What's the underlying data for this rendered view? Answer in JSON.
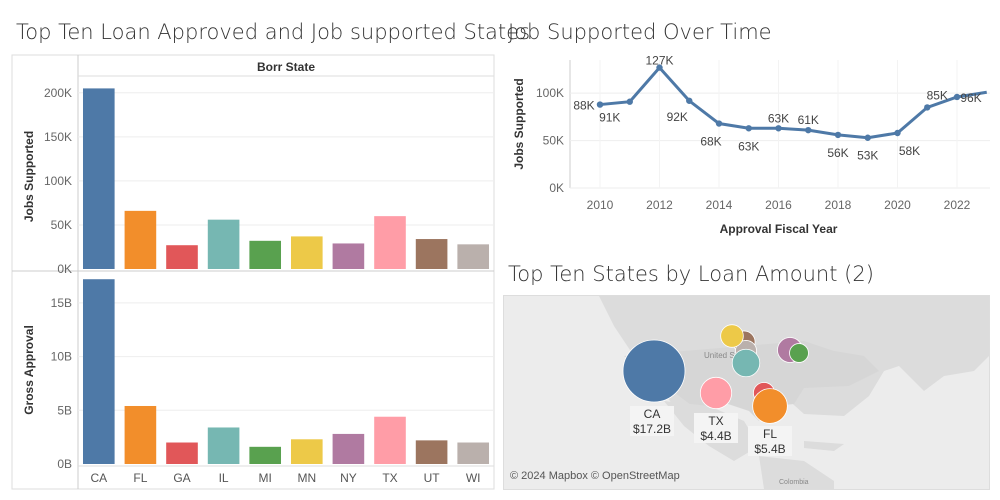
{
  "dashboard": {
    "left_title": "Top Ten Loan Approved and Job supported States",
    "right_title": "Job Supported Over Time",
    "map_title": "Top Ten States by Loan Amount (2)",
    "map_attribution": "© 2024 Mapbox © OpenStreetMap",
    "map_place_labels": [
      "United States",
      "Colombia"
    ]
  },
  "chart_data": [
    {
      "type": "bar",
      "title": "Borr State",
      "xlabel": "",
      "ylabel": "Jobs Supported",
      "categories": [
        "CA",
        "FL",
        "GA",
        "IL",
        "MI",
        "MN",
        "NY",
        "TX",
        "UT",
        "WI"
      ],
      "values": [
        205000,
        66000,
        27000,
        56000,
        32000,
        37000,
        29000,
        60000,
        34000,
        28000
      ],
      "ylim": [
        0,
        210000
      ],
      "yticks": [
        "0K",
        "50K",
        "100K",
        "150K",
        "200K"
      ],
      "colors": [
        "#4e79a7",
        "#f28e2b",
        "#e15759",
        "#76b7b2",
        "#59a14f",
        "#edc948",
        "#b07aa1",
        "#ff9da7",
        "#9c755f",
        "#bab0ac"
      ],
      "grid": true
    },
    {
      "type": "bar",
      "title": "",
      "xlabel": "",
      "ylabel": "Gross Approval",
      "categories": [
        "CA",
        "FL",
        "GA",
        "IL",
        "MI",
        "MN",
        "NY",
        "TX",
        "UT",
        "WI"
      ],
      "values": [
        17.2,
        5.4,
        2.0,
        3.4,
        1.6,
        2.3,
        2.8,
        4.4,
        2.2,
        2.0
      ],
      "ylim": [
        0,
        17.5
      ],
      "yticks": [
        "0B",
        "5B",
        "10B",
        "15B"
      ],
      "colors": [
        "#4e79a7",
        "#f28e2b",
        "#e15759",
        "#76b7b2",
        "#59a14f",
        "#edc948",
        "#b07aa1",
        "#ff9da7",
        "#9c755f",
        "#bab0ac"
      ],
      "grid": true
    },
    {
      "type": "line",
      "title": "Job Supported Over Time",
      "xlabel": "Approval Fiscal Year",
      "ylabel": "Jobs Supported",
      "x": [
        2010,
        2011,
        2012,
        2013,
        2014,
        2015,
        2016,
        2017,
        2018,
        2019,
        2020,
        2021,
        2022,
        2023
      ],
      "values": [
        88000,
        91000,
        127000,
        92000,
        68000,
        63000,
        63000,
        61000,
        56000,
        53000,
        58000,
        85000,
        96000,
        101000
      ],
      "labels": [
        "88K",
        "91K",
        "127K",
        "92K",
        "68K",
        "63K",
        "63K",
        "61K",
        "56K",
        "53K",
        "58K",
        "85K",
        "96K",
        ""
      ],
      "xticks": [
        "2010",
        "2012",
        "2014",
        "2016",
        "2018",
        "2020",
        "2022"
      ],
      "yticks": [
        "0K",
        "50K",
        "100K"
      ],
      "ylim": [
        0,
        135000
      ],
      "color": "#4e79a7",
      "grid": true
    },
    {
      "type": "bubble-map",
      "title": "Top Ten States by Loan Amount (2)",
      "bubbles": [
        {
          "state": "CA",
          "amount": "$17.2B",
          "color": "#4e79a7",
          "labeled": true
        },
        {
          "state": "TX",
          "amount": "$4.4B",
          "color": "#ff9da7",
          "labeled": true
        },
        {
          "state": "FL",
          "amount": "$5.4B",
          "color": "#f28e2b",
          "labeled": true
        },
        {
          "state": "MN",
          "amount": "",
          "color": "#edc948",
          "labeled": false
        },
        {
          "state": "IL",
          "amount": "",
          "color": "#76b7b2",
          "labeled": false
        },
        {
          "state": "NY",
          "amount": "",
          "color": "#b07aa1",
          "labeled": false
        },
        {
          "state": "MI",
          "amount": "",
          "color": "#59a14f",
          "labeled": false
        },
        {
          "state": "GA",
          "amount": "",
          "color": "#e15759",
          "labeled": false
        },
        {
          "state": "UT",
          "amount": "",
          "color": "#9c755f",
          "labeled": false
        },
        {
          "state": "WI",
          "amount": "",
          "color": "#bab0ac",
          "labeled": false
        }
      ]
    }
  ]
}
